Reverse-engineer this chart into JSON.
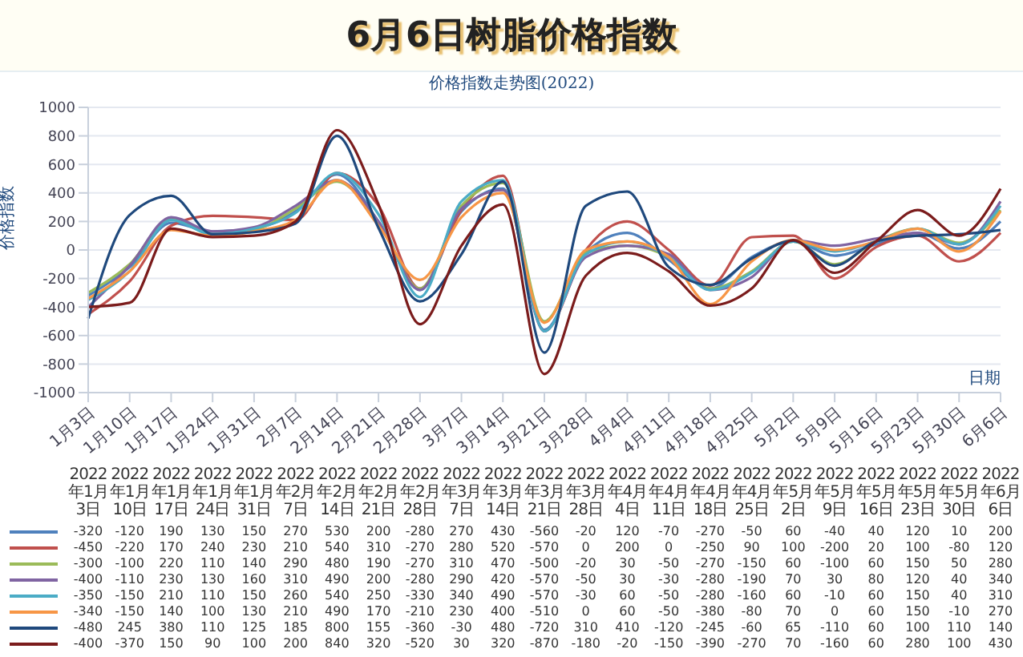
{
  "chart_data": {
    "type": "line",
    "title": "6月6日树脂价格指数",
    "subtitle": "价格指数走势图(2022)",
    "xlabel": "日期",
    "ylabel": "价格指数",
    "categories": [
      "1月3日",
      "1月10日",
      "1月17日",
      "1月24日",
      "1月31日",
      "2月7日",
      "2月14日",
      "2月21日",
      "2月28日",
      "3月7日",
      "3月14日",
      "3月21日",
      "3月28日",
      "4月4日",
      "4月11日",
      "4月18日",
      "4月25日",
      "5月2日",
      "5月9日",
      "5月16日",
      "5月23日",
      "5月30日",
      "6月6日"
    ],
    "annotations": [
      "2022年1月3日",
      "2022年1月10日",
      "2022年1月17日",
      "2022年1月24日",
      "2022年1月31日",
      "2022年2月7日",
      "2022年2月14日",
      "2022年2月21日",
      "2022年2月28日",
      "2022年3月7日",
      "2022年3月14日",
      "2022年3月21日",
      "2022年3月28日",
      "2022年4月4日",
      "2022年4月11日",
      "2022年4月18日",
      "2022年4月25日",
      "2022年5月2日",
      "2022年5月9日",
      "2022年5月16日",
      "2022年5月23日",
      "2022年5月30日",
      "2022年6月6日"
    ],
    "series": [
      {
        "color": "#4f81bd",
        "values": [
          -320,
          -120,
          190,
          130,
          150,
          270,
          530,
          200,
          -280,
          270,
          430,
          -560,
          -20,
          120,
          -70,
          -270,
          -50,
          60,
          -40,
          40,
          120,
          10,
          200
        ]
      },
      {
        "color": "#c0504d",
        "values": [
          -450,
          -220,
          170,
          240,
          230,
          210,
          540,
          310,
          -270,
          280,
          520,
          -570,
          0,
          200,
          0,
          -250,
          90,
          100,
          -200,
          20,
          100,
          -80,
          120
        ]
      },
      {
        "color": "#9bbb59",
        "values": [
          -300,
          -100,
          220,
          110,
          140,
          290,
          480,
          190,
          -270,
          310,
          470,
          -500,
          -20,
          30,
          -50,
          -270,
          -150,
          60,
          -100,
          60,
          150,
          50,
          280
        ]
      },
      {
        "color": "#8064a2",
        "values": [
          -400,
          -110,
          230,
          130,
          160,
          310,
          490,
          200,
          -280,
          290,
          420,
          -570,
          -50,
          30,
          -30,
          -280,
          -190,
          70,
          30,
          80,
          120,
          40,
          340
        ]
      },
      {
        "color": "#4bacc6",
        "values": [
          -350,
          -150,
          210,
          110,
          150,
          260,
          540,
          250,
          -330,
          340,
          490,
          -570,
          -30,
          60,
          -50,
          -280,
          -160,
          60,
          -10,
          60,
          150,
          40,
          310
        ]
      },
      {
        "color": "#f79646",
        "values": [
          -340,
          -150,
          140,
          100,
          130,
          210,
          490,
          170,
          -210,
          230,
          400,
          -510,
          0,
          60,
          -50,
          -380,
          -80,
          70,
          0,
          60,
          150,
          -10,
          270
        ]
      },
      {
        "color": "#1f497d",
        "values": [
          -480,
          245,
          380,
          110,
          125,
          185,
          800,
          155,
          -360,
          -30,
          480,
          -720,
          310,
          410,
          -120,
          -245,
          -60,
          65,
          -110,
          60,
          100,
          110,
          140
        ]
      },
      {
        "color": "#7b1c1c",
        "values": [
          -400,
          -370,
          150,
          90,
          100,
          200,
          840,
          320,
          -520,
          30,
          320,
          -870,
          -180,
          -20,
          -150,
          -390,
          -270,
          70,
          -160,
          60,
          280,
          100,
          430
        ]
      }
    ],
    "ylim": [
      -1000,
      1000
    ],
    "yticks": [
      -1000,
      -800,
      -600,
      -400,
      -200,
      0,
      200,
      400,
      600,
      800,
      1000
    ],
    "grid": "y",
    "data_labels": true
  }
}
